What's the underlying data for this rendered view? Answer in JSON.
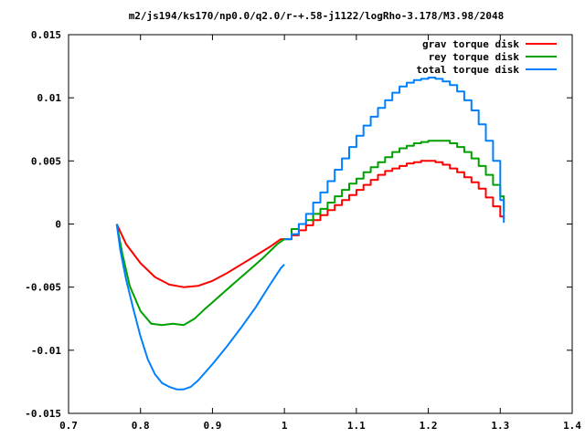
{
  "chart_data": {
    "type": "line",
    "title": "m2/js194/ks170/np0.0/q2.0/r-+.58-j1122/logRho-3.178/M3.98/2048",
    "xlabel": "",
    "ylabel": "",
    "xlim": [
      0.7,
      1.4
    ],
    "ylim": [
      -0.015,
      0.015
    ],
    "x_ticks": [
      "0.7",
      "0.8",
      "0.9",
      "1",
      "1.1",
      "1.2",
      "1.3",
      "1.4"
    ],
    "y_ticks": [
      "-0.015",
      "-0.01",
      "-0.005",
      "0",
      "0.005",
      "0.01",
      "0.015"
    ],
    "grid": false,
    "legend_position": "top-right",
    "series": [
      {
        "name": "grav torque disk",
        "color": "#ff0000",
        "step": false,
        "points": [
          [
            0.767,
            0
          ],
          [
            0.78,
            -0.0016
          ],
          [
            0.8,
            -0.0031
          ],
          [
            0.82,
            -0.0042
          ],
          [
            0.84,
            -0.0048
          ],
          [
            0.86,
            -0.005
          ],
          [
            0.88,
            -0.0049
          ],
          [
            0.9,
            -0.0045
          ],
          [
            0.92,
            -0.0039
          ],
          [
            0.94,
            -0.0032
          ],
          [
            0.96,
            -0.0025
          ],
          [
            0.98,
            -0.0018
          ],
          [
            0.995,
            -0.0012
          ],
          [
            1.0,
            -0.0012
          ]
        ]
      },
      {
        "name": "grav torque disk",
        "color": "#ff0000",
        "step": true,
        "points": [
          [
            1.0,
            -0.0012
          ],
          [
            1.01,
            -0.0009
          ],
          [
            1.02,
            -0.0005
          ],
          [
            1.03,
            -0.0001
          ],
          [
            1.04,
            0.0003
          ],
          [
            1.05,
            0.0007
          ],
          [
            1.06,
            0.0011
          ],
          [
            1.07,
            0.0015
          ],
          [
            1.08,
            0.0019
          ],
          [
            1.09,
            0.0023
          ],
          [
            1.1,
            0.0027
          ],
          [
            1.11,
            0.0031
          ],
          [
            1.12,
            0.0035
          ],
          [
            1.13,
            0.0039
          ],
          [
            1.14,
            0.0042
          ],
          [
            1.15,
            0.0044
          ],
          [
            1.16,
            0.0046
          ],
          [
            1.17,
            0.0048
          ],
          [
            1.18,
            0.0049
          ],
          [
            1.19,
            0.005
          ],
          [
            1.2,
            0.005
          ],
          [
            1.21,
            0.0049
          ],
          [
            1.22,
            0.0047
          ],
          [
            1.23,
            0.0044
          ],
          [
            1.24,
            0.0041
          ],
          [
            1.25,
            0.0037
          ],
          [
            1.26,
            0.0033
          ],
          [
            1.27,
            0.0028
          ],
          [
            1.28,
            0.0021
          ],
          [
            1.29,
            0.0014
          ],
          [
            1.3,
            0.0006
          ],
          [
            1.305,
            0.0004
          ]
        ]
      },
      {
        "name": "rey torque disk",
        "color": "#00a000",
        "step": false,
        "points": [
          [
            0.767,
            0
          ],
          [
            0.775,
            -0.0024
          ],
          [
            0.785,
            -0.0049
          ],
          [
            0.8,
            -0.0069
          ],
          [
            0.815,
            -0.0079
          ],
          [
            0.83,
            -0.008
          ],
          [
            0.845,
            -0.0079
          ],
          [
            0.86,
            -0.008
          ],
          [
            0.875,
            -0.0075
          ],
          [
            0.89,
            -0.0067
          ],
          [
            0.91,
            -0.0057
          ],
          [
            0.93,
            -0.0047
          ],
          [
            0.95,
            -0.0037
          ],
          [
            0.97,
            -0.0027
          ],
          [
            0.99,
            -0.0016
          ],
          [
            1.0,
            -0.0012
          ]
        ]
      },
      {
        "name": "rey torque disk",
        "color": "#00a000",
        "step": true,
        "points": [
          [
            1.0,
            -0.0012
          ],
          [
            1.01,
            -0.0004
          ],
          [
            1.02,
            0
          ],
          [
            1.03,
            0.0003
          ],
          [
            1.04,
            0.0008
          ],
          [
            1.05,
            0.0012
          ],
          [
            1.06,
            0.0017
          ],
          [
            1.07,
            0.0022
          ],
          [
            1.08,
            0.0027
          ],
          [
            1.09,
            0.0032
          ],
          [
            1.1,
            0.0036
          ],
          [
            1.11,
            0.0041
          ],
          [
            1.12,
            0.0045
          ],
          [
            1.13,
            0.0049
          ],
          [
            1.14,
            0.0053
          ],
          [
            1.15,
            0.0057
          ],
          [
            1.16,
            0.006
          ],
          [
            1.17,
            0.0062
          ],
          [
            1.18,
            0.0064
          ],
          [
            1.19,
            0.0065
          ],
          [
            1.2,
            0.0066
          ],
          [
            1.21,
            0.0066
          ],
          [
            1.22,
            0.0066
          ],
          [
            1.23,
            0.0064
          ],
          [
            1.24,
            0.0061
          ],
          [
            1.25,
            0.0057
          ],
          [
            1.26,
            0.0052
          ],
          [
            1.27,
            0.0046
          ],
          [
            1.28,
            0.0039
          ],
          [
            1.29,
            0.0031
          ],
          [
            1.3,
            0.0022
          ],
          [
            1.305,
            0.001
          ]
        ]
      },
      {
        "name": "total torque disk",
        "color": "#0080ff",
        "step": false,
        "points": [
          [
            0.767,
            0
          ],
          [
            0.772,
            -0.0021
          ],
          [
            0.78,
            -0.0044
          ],
          [
            0.79,
            -0.0067
          ],
          [
            0.8,
            -0.0089
          ],
          [
            0.81,
            -0.0107
          ],
          [
            0.82,
            -0.0119
          ],
          [
            0.83,
            -0.0126
          ],
          [
            0.84,
            -0.0129
          ],
          [
            0.85,
            -0.0131
          ],
          [
            0.86,
            -0.0131
          ],
          [
            0.87,
            -0.0129
          ],
          [
            0.88,
            -0.0124
          ],
          [
            0.9,
            -0.0111
          ],
          [
            0.92,
            -0.0097
          ],
          [
            0.94,
            -0.0082
          ],
          [
            0.96,
            -0.0066
          ],
          [
            0.98,
            -0.0048
          ],
          [
            0.995,
            -0.0035
          ],
          [
            1.0,
            -0.0032
          ]
        ]
      },
      {
        "name": "total torque disk",
        "color": "#0080ff",
        "step": true,
        "points": [
          [
            1.0,
            -0.0012
          ],
          [
            1.01,
            -0.0008
          ],
          [
            1.02,
            0
          ],
          [
            1.03,
            0.0008
          ],
          [
            1.04,
            0.0017
          ],
          [
            1.05,
            0.0025
          ],
          [
            1.06,
            0.0034
          ],
          [
            1.07,
            0.0043
          ],
          [
            1.08,
            0.0052
          ],
          [
            1.09,
            0.0061
          ],
          [
            1.1,
            0.007
          ],
          [
            1.11,
            0.0078
          ],
          [
            1.12,
            0.0085
          ],
          [
            1.13,
            0.0092
          ],
          [
            1.14,
            0.0098
          ],
          [
            1.15,
            0.0104
          ],
          [
            1.16,
            0.0109
          ],
          [
            1.17,
            0.0112
          ],
          [
            1.18,
            0.0114
          ],
          [
            1.19,
            0.0115
          ],
          [
            1.2,
            0.0116
          ],
          [
            1.21,
            0.0115
          ],
          [
            1.22,
            0.0113
          ],
          [
            1.23,
            0.011
          ],
          [
            1.24,
            0.0105
          ],
          [
            1.25,
            0.0098
          ],
          [
            1.26,
            0.009
          ],
          [
            1.27,
            0.0079
          ],
          [
            1.28,
            0.0066
          ],
          [
            1.29,
            0.005
          ],
          [
            1.3,
            0.0019
          ],
          [
            1.305,
            0.0001
          ]
        ]
      }
    ],
    "legend": [
      {
        "name": "grav torque disk",
        "color": "#ff0000"
      },
      {
        "name": "rey torque disk",
        "color": "#00a000"
      },
      {
        "name": "total torque disk",
        "color": "#0080ff"
      }
    ]
  }
}
